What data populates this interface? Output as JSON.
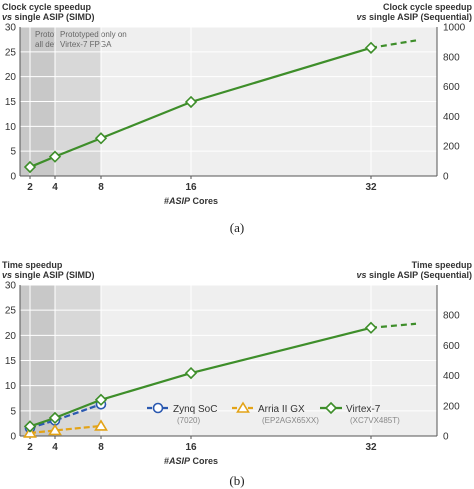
{
  "chart_data": [
    {
      "type": "line",
      "panel_caption": "(a)",
      "ylabel_left_line1": "Clock cycle speedup",
      "ylabel_left_line2": "vs single ASIP (SIMD)",
      "ylabel_right_line1": "Clock cycle speedup",
      "ylabel_right_line2": "vs single ASIP (Sequential)",
      "xlabel_prefix": "#",
      "xlabel_em": "ASIP",
      "xlabel_suffix": " Cores",
      "x_ticks": [
        "2",
        "4",
        "8",
        "16",
        "32"
      ],
      "y_left_ticks": [
        "0",
        "5",
        "10",
        "15",
        "20",
        "25",
        "30"
      ],
      "y_right_ticks": [
        "0",
        "200",
        "400",
        "600",
        "800",
        "1000"
      ],
      "ylim_left": [
        0,
        30
      ],
      "ylim_right": [
        0,
        1000
      ],
      "grid": true,
      "shaded_regions": [
        {
          "from": 2,
          "to": 4,
          "line1": "Prototyped on",
          "line2": "all devices",
          "color": "#c8c8c8"
        },
        {
          "from": 4,
          "to": 8,
          "line1": "Prototyped only on",
          "line2": "Virtex-7 FPGA",
          "color": "#d8d8d8"
        }
      ],
      "series": [
        {
          "color": "#3e8e2a",
          "marker": "diamond",
          "x": [
            2,
            4,
            8,
            16,
            32
          ],
          "y": [
            1.8,
            3.9,
            7.6,
            14.9,
            25.8
          ],
          "extrapolation": {
            "x": [
              32,
              40
            ],
            "y": [
              25.8,
              27.3
            ]
          }
        }
      ]
    },
    {
      "type": "line",
      "panel_caption": "(b)",
      "ylabel_left_line1": "Time speedup",
      "ylabel_left_line2": "vs single ASIP (SIMD)",
      "ylabel_right_line1": "Time speedup",
      "ylabel_right_line2": "vs single ASIP (Sequential)",
      "xlabel_prefix": "#",
      "xlabel_em": "ASIP",
      "xlabel_suffix": " Cores",
      "x_ticks": [
        "2",
        "4",
        "8",
        "16",
        "32"
      ],
      "y_left_ticks": [
        "0",
        "5",
        "10",
        "15",
        "20",
        "25",
        "30"
      ],
      "y_right_ticks": [
        "0",
        "200",
        "400",
        "600",
        "800"
      ],
      "ylim_left": [
        0,
        30
      ],
      "ylim_right": [
        0,
        1000
      ],
      "grid": true,
      "shaded_regions": [
        {
          "from": 2,
          "to": 4,
          "color": "#c8c8c8"
        },
        {
          "from": 4,
          "to": 8,
          "color": "#d8d8d8"
        }
      ],
      "series": [
        {
          "name": "Zynq SoC",
          "sub": "(7020)",
          "color": "#2b59b0",
          "marker": "circle",
          "dashed": true,
          "x": [
            2,
            4,
            8
          ],
          "y": [
            1.6,
            3.1,
            6.3
          ]
        },
        {
          "name": "Arria II GX",
          "sub": "(EP2AGX65XX)",
          "color": "#e3a317",
          "marker": "triangle",
          "dashed": true,
          "x": [
            2,
            4,
            8
          ],
          "y": [
            0.6,
            1.1,
            2.0
          ]
        },
        {
          "name": "Virtex-7",
          "sub": "(XC7VX485T)",
          "color": "#3e8e2a",
          "marker": "diamond",
          "dashed": false,
          "x": [
            2,
            4,
            8,
            16,
            32
          ],
          "y": [
            1.9,
            3.6,
            7.2,
            12.5,
            21.5
          ],
          "extrapolation": {
            "x": [
              32,
              40
            ],
            "y": [
              21.5,
              22.3
            ]
          }
        }
      ],
      "legend_position": "lower-center"
    }
  ]
}
